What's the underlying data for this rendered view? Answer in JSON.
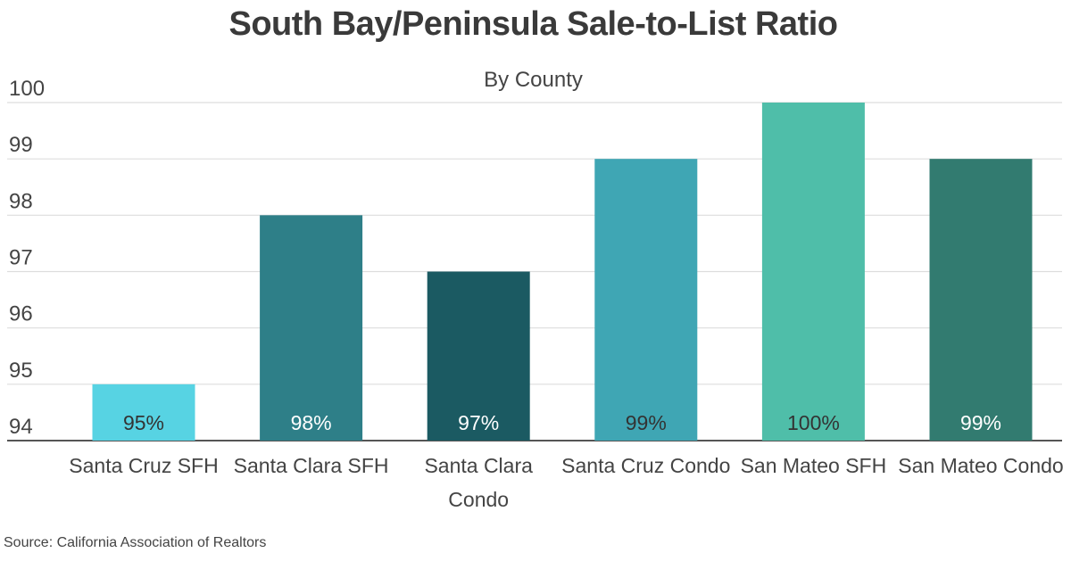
{
  "chart_data": {
    "type": "bar",
    "title": "South Bay/Peninsula Sale-to-List Ratio",
    "subtitle": "By County",
    "categories": [
      [
        "Santa Cruz SFH"
      ],
      [
        "Santa Clara SFH"
      ],
      [
        "Santa Clara",
        "Condo"
      ],
      [
        "Santa Cruz Condo"
      ],
      [
        "San Mateo SFH"
      ],
      [
        "San Mateo Condo"
      ]
    ],
    "values": [
      95,
      98,
      97,
      99,
      100,
      99
    ],
    "data_labels": [
      "95%",
      "98%",
      "97%",
      "99%",
      "100%",
      "99%"
    ],
    "bar_colors": [
      "#57d3e3",
      "#2e7f88",
      "#1b5a62",
      "#3fa6b4",
      "#4fbea9",
      "#327b70"
    ],
    "label_colors": [
      "#333333",
      "#ffffff",
      "#ffffff",
      "#333333",
      "#333333",
      "#ffffff"
    ],
    "y_ticks": [
      "94",
      "95",
      "96",
      "97",
      "98",
      "99",
      "100"
    ],
    "ylim": [
      94,
      100
    ],
    "xlabel": "",
    "ylabel": "",
    "grid": true,
    "legend": "none",
    "source": "Source:  California Association of Realtors"
  }
}
